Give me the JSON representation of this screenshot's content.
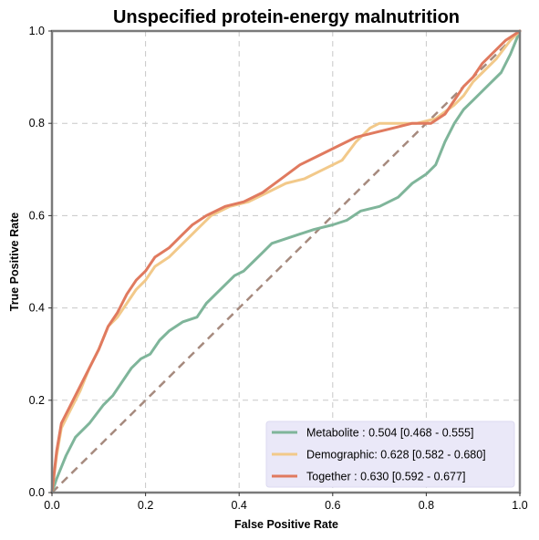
{
  "chart_data": {
    "type": "line",
    "title": "Unspecified protein-energy malnutrition",
    "xlabel": "False Positive Rate",
    "ylabel": "True Positive Rate",
    "xlim": [
      0,
      1
    ],
    "ylim": [
      0,
      1
    ],
    "xticks": [
      "0.0",
      "0.2",
      "0.4",
      "0.6",
      "0.8",
      "1.0"
    ],
    "yticks": [
      "0.0",
      "0.2",
      "0.4",
      "0.6",
      "0.8",
      "1.0"
    ],
    "grid": true,
    "legend_position": "bottom-right",
    "diagonal": {
      "color": "#a68a7e",
      "style": "dashed"
    },
    "series": [
      {
        "name": "Metabolite",
        "label": "Metabolite     : 0.504 [0.468 - 0.555]",
        "color": "#7fb59a",
        "points": [
          [
            0,
            0
          ],
          [
            0.01,
            0.03
          ],
          [
            0.03,
            0.08
          ],
          [
            0.05,
            0.12
          ],
          [
            0.08,
            0.15
          ],
          [
            0.11,
            0.19
          ],
          [
            0.13,
            0.21
          ],
          [
            0.15,
            0.24
          ],
          [
            0.17,
            0.27
          ],
          [
            0.19,
            0.29
          ],
          [
            0.21,
            0.3
          ],
          [
            0.23,
            0.33
          ],
          [
            0.25,
            0.35
          ],
          [
            0.28,
            0.37
          ],
          [
            0.31,
            0.38
          ],
          [
            0.33,
            0.41
          ],
          [
            0.35,
            0.43
          ],
          [
            0.37,
            0.45
          ],
          [
            0.39,
            0.47
          ],
          [
            0.41,
            0.48
          ],
          [
            0.43,
            0.5
          ],
          [
            0.45,
            0.52
          ],
          [
            0.47,
            0.54
          ],
          [
            0.5,
            0.55
          ],
          [
            0.53,
            0.56
          ],
          [
            0.56,
            0.57
          ],
          [
            0.6,
            0.58
          ],
          [
            0.63,
            0.59
          ],
          [
            0.66,
            0.61
          ],
          [
            0.7,
            0.62
          ],
          [
            0.74,
            0.64
          ],
          [
            0.77,
            0.67
          ],
          [
            0.8,
            0.69
          ],
          [
            0.82,
            0.71
          ],
          [
            0.84,
            0.76
          ],
          [
            0.86,
            0.8
          ],
          [
            0.88,
            0.83
          ],
          [
            0.9,
            0.85
          ],
          [
            0.93,
            0.88
          ],
          [
            0.96,
            0.91
          ],
          [
            0.98,
            0.95
          ],
          [
            1,
            1
          ]
        ]
      },
      {
        "name": "Demographic",
        "label": "Demographic: 0.628 [0.582 - 0.680]",
        "color": "#f2c98a",
        "points": [
          [
            0,
            0
          ],
          [
            0.01,
            0.08
          ],
          [
            0.02,
            0.14
          ],
          [
            0.04,
            0.18
          ],
          [
            0.06,
            0.22
          ],
          [
            0.08,
            0.27
          ],
          [
            0.1,
            0.31
          ],
          [
            0.12,
            0.36
          ],
          [
            0.14,
            0.38
          ],
          [
            0.16,
            0.41
          ],
          [
            0.18,
            0.44
          ],
          [
            0.2,
            0.46
          ],
          [
            0.22,
            0.49
          ],
          [
            0.25,
            0.51
          ],
          [
            0.28,
            0.54
          ],
          [
            0.31,
            0.57
          ],
          [
            0.34,
            0.6
          ],
          [
            0.38,
            0.62
          ],
          [
            0.42,
            0.63
          ],
          [
            0.46,
            0.65
          ],
          [
            0.5,
            0.67
          ],
          [
            0.54,
            0.68
          ],
          [
            0.58,
            0.7
          ],
          [
            0.62,
            0.72
          ],
          [
            0.65,
            0.76
          ],
          [
            0.68,
            0.79
          ],
          [
            0.7,
            0.8
          ],
          [
            0.74,
            0.8
          ],
          [
            0.78,
            0.8
          ],
          [
            0.82,
            0.81
          ],
          [
            0.86,
            0.84
          ],
          [
            0.88,
            0.86
          ],
          [
            0.9,
            0.89
          ],
          [
            0.92,
            0.91
          ],
          [
            0.95,
            0.94
          ],
          [
            0.98,
            0.98
          ],
          [
            1,
            1
          ]
        ]
      },
      {
        "name": "Together",
        "label": "Together       : 0.630 [0.592 - 0.677]",
        "color": "#e07a5f",
        "points": [
          [
            0,
            0
          ],
          [
            0.01,
            0.09
          ],
          [
            0.02,
            0.15
          ],
          [
            0.04,
            0.19
          ],
          [
            0.06,
            0.23
          ],
          [
            0.08,
            0.27
          ],
          [
            0.1,
            0.31
          ],
          [
            0.12,
            0.36
          ],
          [
            0.14,
            0.39
          ],
          [
            0.16,
            0.43
          ],
          [
            0.18,
            0.46
          ],
          [
            0.2,
            0.48
          ],
          [
            0.22,
            0.51
          ],
          [
            0.25,
            0.53
          ],
          [
            0.28,
            0.56
          ],
          [
            0.3,
            0.58
          ],
          [
            0.33,
            0.6
          ],
          [
            0.37,
            0.62
          ],
          [
            0.41,
            0.63
          ],
          [
            0.45,
            0.65
          ],
          [
            0.49,
            0.68
          ],
          [
            0.53,
            0.71
          ],
          [
            0.57,
            0.73
          ],
          [
            0.61,
            0.75
          ],
          [
            0.65,
            0.77
          ],
          [
            0.69,
            0.78
          ],
          [
            0.73,
            0.79
          ],
          [
            0.77,
            0.8
          ],
          [
            0.81,
            0.8
          ],
          [
            0.84,
            0.82
          ],
          [
            0.86,
            0.85
          ],
          [
            0.88,
            0.88
          ],
          [
            0.9,
            0.9
          ],
          [
            0.92,
            0.93
          ],
          [
            0.94,
            0.95
          ],
          [
            0.97,
            0.98
          ],
          [
            1,
            1
          ]
        ]
      }
    ]
  }
}
